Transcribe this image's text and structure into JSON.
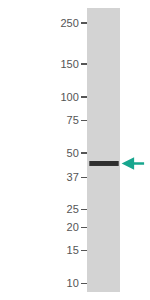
{
  "chart_data": {
    "type": "blot",
    "ylim": [
      9,
      300
    ],
    "yticks": [
      10,
      15,
      20,
      25,
      37,
      50,
      75,
      100,
      150,
      250
    ],
    "log": "y",
    "color": "#d3d3d3",
    "band": {
      "value": 44,
      "color": "#2e2e2e"
    },
    "annotations": [
      {
        "y": 44,
        "color": "#17a68e",
        "marker": "arrow"
      }
    ]
  }
}
